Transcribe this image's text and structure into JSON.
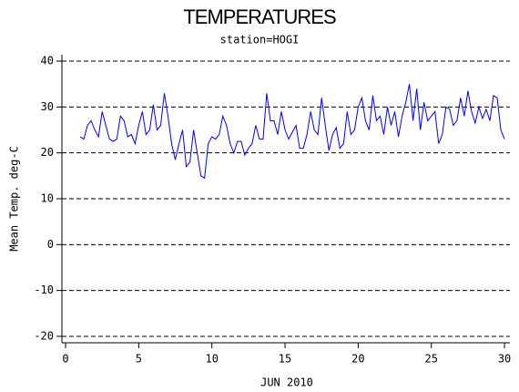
{
  "chart_data": {
    "type": "line",
    "title": "TEMPERATURES",
    "subtitle": "station=HOGI",
    "x_label": "JUN 2010",
    "y_label": "Mean Temp. deg-C",
    "x": [
      1,
      1.25,
      1.5,
      1.75,
      2,
      2.25,
      2.5,
      2.75,
      3,
      3.25,
      3.5,
      3.75,
      4,
      4.25,
      4.5,
      4.75,
      5,
      5.25,
      5.5,
      5.75,
      6,
      6.25,
      6.5,
      6.75,
      7,
      7.25,
      7.5,
      7.75,
      8,
      8.25,
      8.5,
      8.75,
      9,
      9.25,
      9.5,
      9.75,
      10,
      10.25,
      10.5,
      10.75,
      11,
      11.25,
      11.5,
      11.75,
      12,
      12.25,
      12.5,
      12.75,
      13,
      13.25,
      13.5,
      13.75,
      14,
      14.25,
      14.5,
      14.75,
      15,
      15.25,
      15.5,
      15.75,
      16,
      16.25,
      16.5,
      16.75,
      17,
      17.25,
      17.5,
      17.75,
      18,
      18.25,
      18.5,
      18.75,
      19,
      19.25,
      19.5,
      19.75,
      20,
      20.25,
      20.5,
      20.75,
      21,
      21.25,
      21.5,
      21.75,
      22,
      22.25,
      22.5,
      22.75,
      23,
      23.25,
      23.5,
      23.75,
      24,
      24.25,
      24.5,
      24.75,
      25,
      25.25,
      25.5,
      25.75,
      26,
      26.25,
      26.5,
      26.75,
      27,
      27.25,
      27.5,
      27.75,
      28,
      28.25,
      28.5,
      28.75,
      29,
      29.25,
      29.5,
      29.75,
      30
    ],
    "series": [
      {
        "name": "Mean Temp",
        "color": "#0000ff",
        "values": [
          23.5,
          23,
          26,
          27,
          25,
          23.5,
          29,
          26,
          23,
          22.5,
          23,
          28,
          27,
          23.5,
          24,
          22,
          26,
          29,
          24,
          25,
          30.5,
          25,
          26,
          33,
          28,
          22,
          18.5,
          22,
          25,
          17,
          18,
          25,
          20,
          15,
          14.5,
          22,
          23.5,
          23,
          24,
          28,
          26,
          22,
          20,
          22.5,
          22.5,
          19.5,
          21,
          22,
          26,
          23,
          23,
          33,
          27,
          27,
          24,
          29,
          25,
          23,
          24.5,
          26,
          21,
          21,
          24,
          29,
          25,
          24,
          32,
          26,
          20.5,
          24,
          25.5,
          21,
          22,
          29,
          24,
          25,
          30,
          32,
          27,
          25,
          32.5,
          27,
          28,
          24,
          30,
          26,
          29,
          23.5,
          28,
          31,
          35,
          27,
          34,
          25,
          31,
          27,
          28,
          29,
          22,
          24,
          30,
          29.5,
          26,
          27,
          32,
          28,
          33.5,
          29,
          26.5,
          30,
          27.5,
          29.5,
          27,
          32.5,
          32,
          25,
          23
        ]
      }
    ],
    "xlim": [
      -0.25,
      30.37
    ],
    "ylim": [
      -21.4,
      41.4
    ],
    "xticks": [
      0,
      5,
      10,
      15,
      20,
      25,
      30
    ],
    "yticks": [
      -20,
      -10,
      0,
      10,
      20,
      30,
      40
    ],
    "grid": true
  }
}
